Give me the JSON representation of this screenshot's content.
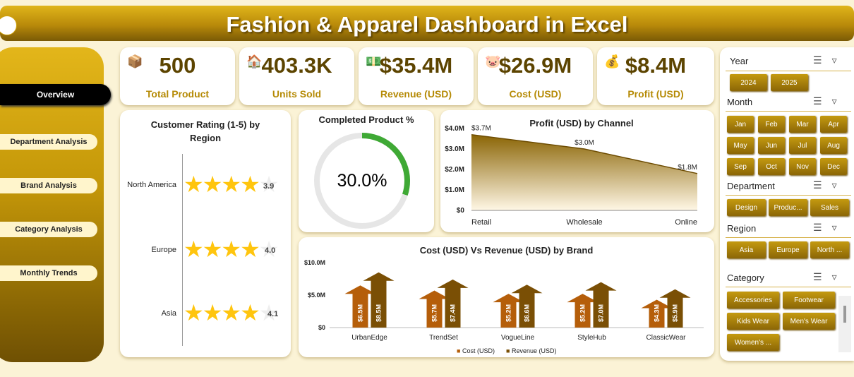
{
  "header": {
    "title": "Fashion & Apparel Dashboard in Excel"
  },
  "nav": {
    "items": [
      "Overview",
      "Department Analysis",
      "Brand Analysis",
      "Category Analysis",
      "Monthly Trends"
    ]
  },
  "kpis": [
    {
      "value": "500",
      "label": "Total Product",
      "icon": "box-icon"
    },
    {
      "value": "403.3K",
      "label": "Units Sold",
      "icon": "sold-house-icon"
    },
    {
      "value": "$35.4M",
      "label": "Revenue (USD)",
      "icon": "money-hand-icon"
    },
    {
      "value": "$26.9M",
      "label": "Cost (USD)",
      "icon": "piggy-bank-icon"
    },
    {
      "value": "$8.4M",
      "label": "Profit (USD)",
      "icon": "money-bag-icon"
    }
  ],
  "rating_chart": {
    "title": "Customer Rating (1-5) by Region"
  },
  "completed_chart": {
    "title": "Completed Product %",
    "value_label": "30.0%"
  },
  "profit_chart_title": "Profit (USD) by Channel",
  "brand_chart_title": "Cost (USD) Vs Revenue (USD) by Brand",
  "slicers": {
    "year": {
      "title": "Year",
      "options": [
        "2024",
        "2025"
      ]
    },
    "month": {
      "title": "Month",
      "options": [
        "Jan",
        "Feb",
        "Mar",
        "Apr",
        "May",
        "Jun",
        "Jul",
        "Aug",
        "Sep",
        "Oct",
        "Nov",
        "Dec"
      ]
    },
    "department": {
      "title": "Department",
      "options": [
        "Design",
        "Produc...",
        "Sales"
      ]
    },
    "region": {
      "title": "Region",
      "options": [
        "Asia",
        "Europe",
        "North ..."
      ]
    },
    "category": {
      "title": "Category",
      "options": [
        "Accessories",
        "Footwear",
        "Kids Wear",
        "Men's Wear",
        "Women's ..."
      ]
    }
  },
  "chart_data": [
    {
      "type": "bar",
      "title": "Customer Rating (1-5) by Region",
      "categories": [
        "North America",
        "Europe",
        "Asia"
      ],
      "values": [
        3.9,
        4.0,
        4.1
      ],
      "value_labels": [
        "3.9",
        "4.0",
        "4.1"
      ],
      "ylim": [
        0,
        5
      ]
    },
    {
      "type": "pie",
      "title": "Completed Product %",
      "categories": [
        "Completed",
        "Remaining"
      ],
      "values": [
        30.0,
        70.0
      ]
    },
    {
      "type": "area",
      "title": "Profit (USD) by Channel",
      "categories": [
        "Retail",
        "Wholesale",
        "Online"
      ],
      "values": [
        3.7,
        3.0,
        1.8
      ],
      "value_labels": [
        "$3.7M",
        "$3.0M",
        "$1.8M"
      ],
      "yticks": [
        "$0",
        "$1.0M",
        "$2.0M",
        "$3.0M",
        "$4.0M"
      ],
      "ylim": [
        0,
        4.0
      ]
    },
    {
      "type": "bar",
      "title": "Cost (USD) Vs Revenue (USD) by Brand",
      "categories": [
        "UrbanEdge",
        "TrendSet",
        "VogueLine",
        "StyleHub",
        "ClassicWear"
      ],
      "series": [
        {
          "name": "Cost (USD)",
          "values": [
            6.5,
            5.7,
            5.2,
            5.2,
            4.3
          ],
          "labels": [
            "$6.5M",
            "$5.7M",
            "$5.2M",
            "$5.2M",
            "$4.3M"
          ],
          "color": "#b55e0a"
        },
        {
          "name": "Revenue (USD)",
          "values": [
            8.5,
            7.4,
            6.6,
            7.0,
            5.9
          ],
          "labels": [
            "$8.5M",
            "$7.4M",
            "$6.6M",
            "$7.0M",
            "$5.9M"
          ],
          "color": "#7a4f05"
        }
      ],
      "yticks": [
        "$0",
        "$5.0M",
        "$10.0M"
      ],
      "ylim": [
        0,
        10.0
      ]
    }
  ]
}
